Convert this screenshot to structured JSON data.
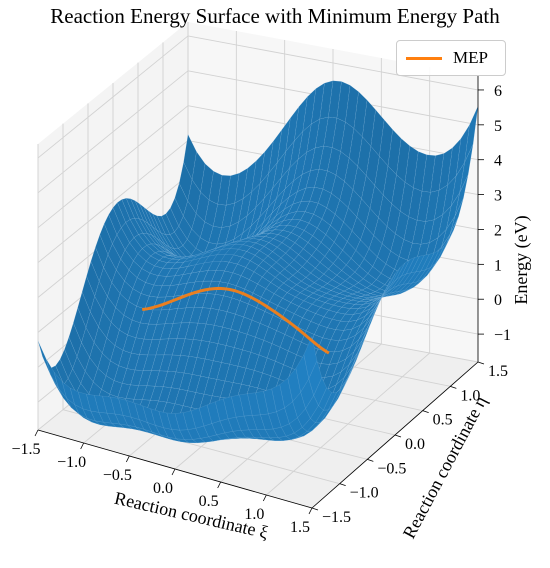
{
  "chart_data": {
    "type": "surface",
    "title": "Reaction Energy Surface with Minimum Energy Path",
    "xlabel": "Reaction coordinate ξ",
    "ylabel": "Reaction coordinate η",
    "zlabel": "Energy (eV)",
    "xlim": [
      -1.5,
      1.5
    ],
    "ylim": [
      -1.5,
      1.5
    ],
    "zlim": [
      -1.8,
      6.4
    ],
    "x_ticks": [
      "−1.5",
      "−1.0",
      "−0.5",
      "0.0",
      "0.5",
      "1.0",
      "1.5"
    ],
    "y_ticks": [
      "−1.5",
      "−1.0",
      "−0.5",
      "0.0",
      "0.5",
      "1.0",
      "1.5"
    ],
    "z_ticks": [
      "−1",
      "0",
      "1",
      "2",
      "3",
      "4",
      "5",
      "6"
    ],
    "surface_corners": {
      "xi_-1.5_eta_-1.5": 1.6,
      "xi_1.5_eta_-1.5": 1.6,
      "xi_-1.5_eta_1.5": 5.8,
      "xi_1.5_eta_1.5": 5.8
    },
    "surface_color": "#1f77b4",
    "grid": true,
    "legend_position": "upper right",
    "series": [
      {
        "name": "MEP",
        "color": "#ff7f0e"
      }
    ]
  }
}
